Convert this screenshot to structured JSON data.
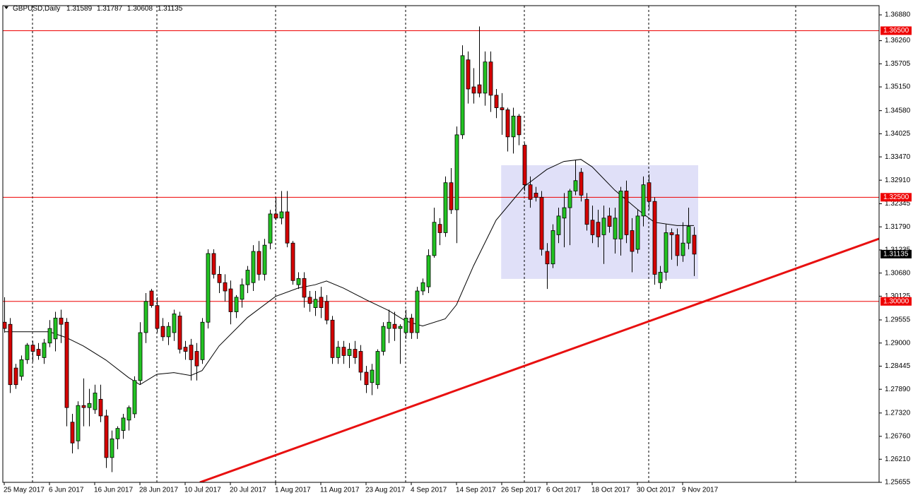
{
  "chart_data": {
    "type": "candlestick",
    "title": "GBPUSD,Daily",
    "up_color": "#22c322",
    "down_color": "#d50000",
    "candles": [
      [
        1.295,
        1.301,
        1.2925,
        1.2935
      ],
      [
        1.2945,
        1.296,
        1.278,
        1.28
      ],
      [
        1.284,
        1.285,
        1.279,
        1.28
      ],
      [
        1.282,
        1.287,
        1.281,
        1.286
      ],
      [
        1.286,
        1.29,
        1.285,
        1.2895
      ],
      [
        1.2895,
        1.2905,
        1.2855,
        1.288
      ],
      [
        1.2885,
        1.29,
        1.286,
        1.287
      ],
      [
        1.2865,
        1.291,
        1.285,
        1.29
      ],
      [
        1.29,
        1.2955,
        1.289,
        1.2935
      ],
      [
        1.291,
        1.2975,
        1.288,
        1.296
      ],
      [
        1.296,
        1.298,
        1.29,
        1.2945
      ],
      [
        1.295,
        1.296,
        1.27,
        1.2745
      ],
      [
        1.271,
        1.273,
        1.2635,
        1.266
      ],
      [
        1.2665,
        1.276,
        1.2645,
        1.275
      ],
      [
        1.275,
        1.2815,
        1.27,
        1.2745
      ],
      [
        1.2745,
        1.279,
        1.27,
        1.2755
      ],
      [
        1.274,
        1.28,
        1.273,
        1.278
      ],
      [
        1.2765,
        1.28,
        1.271,
        1.2725
      ],
      [
        1.2725,
        1.274,
        1.26,
        1.2625
      ],
      [
        1.2625,
        1.269,
        1.259,
        1.267
      ],
      [
        1.267,
        1.27,
        1.2645,
        1.2695
      ],
      [
        1.269,
        1.273,
        1.267,
        1.272
      ],
      [
        1.2715,
        1.275,
        1.269,
        1.2745
      ],
      [
        1.273,
        1.282,
        1.272,
        1.281
      ],
      [
        1.281,
        1.295,
        1.28,
        1.2925
      ],
      [
        1.2925,
        1.302,
        1.29,
        1.3
      ],
      [
        1.3025,
        1.303,
        1.2985,
        1.299
      ],
      [
        1.299,
        1.301,
        1.2925,
        1.2935
      ],
      [
        1.294,
        1.296,
        1.2905,
        1.2915
      ],
      [
        1.2915,
        1.295,
        1.2895,
        1.294
      ],
      [
        1.2925,
        1.298,
        1.2905,
        1.297
      ],
      [
        1.2965,
        1.2975,
        1.2875,
        1.2885
      ],
      [
        1.289,
        1.2905,
        1.286,
        1.288
      ],
      [
        1.2895,
        1.291,
        1.281,
        1.286
      ],
      [
        1.288,
        1.29,
        1.281,
        1.2845
      ],
      [
        1.286,
        1.296,
        1.285,
        1.295
      ],
      [
        1.295,
        1.3125,
        1.2935,
        1.3115
      ],
      [
        1.3115,
        1.3125,
        1.3055,
        1.3065
      ],
      [
        1.3065,
        1.3085,
        1.302,
        1.3045
      ],
      [
        1.3045,
        1.3065,
        1.3,
        1.3025
      ],
      [
        1.303,
        1.305,
        1.2945,
        1.2975
      ],
      [
        1.2975,
        1.3015,
        1.296,
        1.301
      ],
      [
        1.3005,
        1.3055,
        1.2985,
        1.304
      ],
      [
        1.304,
        1.3085,
        1.302,
        1.3075
      ],
      [
        1.3045,
        1.3135,
        1.3025,
        1.312
      ],
      [
        1.312,
        1.3145,
        1.305,
        1.3065
      ],
      [
        1.3065,
        1.315,
        1.305,
        1.3135
      ],
      [
        1.314,
        1.322,
        1.3125,
        1.321
      ],
      [
        1.321,
        1.325,
        1.3195,
        1.32
      ],
      [
        1.32,
        1.3265,
        1.3185,
        1.3215
      ],
      [
        1.3215,
        1.3265,
        1.313,
        1.314
      ],
      [
        1.314,
        1.3145,
        1.304,
        1.305
      ],
      [
        1.304,
        1.307,
        1.303,
        1.3055
      ],
      [
        1.3055,
        1.307,
        1.2985,
        1.301
      ],
      [
        1.301,
        1.3025,
        1.2975,
        1.2995
      ],
      [
        1.2985,
        1.3025,
        1.2965,
        1.3005
      ],
      [
        1.301,
        1.3035,
        1.296,
        1.2985
      ],
      [
        1.3,
        1.3015,
        1.2945,
        1.2955
      ],
      [
        1.2955,
        1.2965,
        1.285,
        1.2865
      ],
      [
        1.2865,
        1.2905,
        1.285,
        1.289
      ],
      [
        1.289,
        1.2905,
        1.285,
        1.287
      ],
      [
        1.287,
        1.29,
        1.284,
        1.2885
      ],
      [
        1.2885,
        1.2905,
        1.285,
        1.2865
      ],
      [
        1.288,
        1.2895,
        1.281,
        1.283
      ],
      [
        1.283,
        1.2845,
        1.278,
        1.28
      ],
      [
        1.2805,
        1.285,
        1.2775,
        1.2835
      ],
      [
        1.28,
        1.2885,
        1.279,
        1.288
      ],
      [
        1.288,
        1.295,
        1.287,
        1.294
      ],
      [
        1.2935,
        1.298,
        1.29,
        1.295
      ],
      [
        1.2945,
        1.2975,
        1.2905,
        1.2935
      ],
      [
        1.2935,
        1.2945,
        1.285,
        1.294
      ],
      [
        1.2925,
        1.298,
        1.291,
        1.296
      ],
      [
        1.296,
        1.297,
        1.291,
        1.2925
      ],
      [
        1.2925,
        1.3035,
        1.291,
        1.3025
      ],
      [
        1.3025,
        1.3055,
        1.3015,
        1.3045
      ],
      [
        1.3035,
        1.3125,
        1.302,
        1.311
      ],
      [
        1.311,
        1.3225,
        1.3105,
        1.319
      ],
      [
        1.3185,
        1.32,
        1.3135,
        1.3165
      ],
      [
        1.3165,
        1.33,
        1.3155,
        1.3285
      ],
      [
        1.3285,
        1.332,
        1.321,
        1.322
      ],
      [
        1.322,
        1.342,
        1.314,
        1.34
      ],
      [
        1.34,
        1.3615,
        1.339,
        1.359
      ],
      [
        1.358,
        1.36,
        1.3475,
        1.351
      ],
      [
        1.3515,
        1.356,
        1.3475,
        1.35
      ],
      [
        1.352,
        1.366,
        1.349,
        1.35
      ],
      [
        1.35,
        1.36,
        1.347,
        1.3575
      ],
      [
        1.3575,
        1.36,
        1.3455,
        1.3495
      ],
      [
        1.3495,
        1.351,
        1.344,
        1.3465
      ],
      [
        1.3465,
        1.35,
        1.34,
        1.346
      ],
      [
        1.346,
        1.3465,
        1.336,
        1.3395
      ],
      [
        1.3395,
        1.3465,
        1.3355,
        1.3445
      ],
      [
        1.3445,
        1.345,
        1.3375,
        1.34
      ],
      [
        1.3375,
        1.338,
        1.3265,
        1.328
      ],
      [
        1.328,
        1.33,
        1.3225,
        1.3245
      ],
      [
        1.326,
        1.3275,
        1.324,
        1.325
      ],
      [
        1.325,
        1.3265,
        1.311,
        1.3125
      ],
      [
        1.312,
        1.314,
        1.303,
        1.309
      ],
      [
        1.309,
        1.3185,
        1.308,
        1.317
      ],
      [
        1.316,
        1.3225,
        1.314,
        1.3205
      ],
      [
        1.32,
        1.326,
        1.313,
        1.3225
      ],
      [
        1.3225,
        1.327,
        1.3135,
        1.3265
      ],
      [
        1.3265,
        1.334,
        1.3255,
        1.329
      ],
      [
        1.331,
        1.332,
        1.324,
        1.3255
      ],
      [
        1.3245,
        1.326,
        1.317,
        1.3185
      ],
      [
        1.3195,
        1.323,
        1.314,
        1.316
      ],
      [
        1.319,
        1.322,
        1.313,
        1.3155
      ],
      [
        1.316,
        1.323,
        1.309,
        1.32
      ],
      [
        1.3205,
        1.3225,
        1.3165,
        1.318
      ],
      [
        1.315,
        1.3225,
        1.3115,
        1.32
      ],
      [
        1.315,
        1.3275,
        1.311,
        1.3265
      ],
      [
        1.3265,
        1.329,
        1.314,
        1.316
      ],
      [
        1.317,
        1.32,
        1.307,
        1.312
      ],
      [
        1.3125,
        1.322,
        1.3115,
        1.3205
      ],
      [
        1.3205,
        1.33,
        1.318,
        1.328
      ],
      [
        1.3285,
        1.3305,
        1.322,
        1.324
      ],
      [
        1.324,
        1.325,
        1.304,
        1.3065
      ],
      [
        1.3045,
        1.3085,
        1.303,
        1.307
      ],
      [
        1.307,
        1.3185,
        1.305,
        1.3165
      ],
      [
        1.3165,
        1.3175,
        1.31,
        1.316
      ],
      [
        1.316,
        1.3175,
        1.3085,
        1.311
      ],
      [
        1.311,
        1.319,
        1.3095,
        1.314
      ],
      [
        1.314,
        1.3225,
        1.3125,
        1.318
      ],
      [
        1.31589,
        1.31787,
        1.30608,
        1.31135
      ]
    ],
    "ma": {
      "color": "#000000",
      "x": [
        0,
        5,
        8,
        11,
        14,
        18,
        22,
        24,
        27,
        30,
        33,
        35,
        38,
        43,
        48,
        52,
        55,
        57,
        60,
        64,
        68,
        71,
        74,
        78,
        80,
        83,
        87,
        92,
        96,
        99,
        102,
        104,
        108,
        112,
        115,
        119,
        122
      ],
      "values": [
        1.2927,
        1.2927,
        1.2927,
        1.2913,
        1.2893,
        1.2859,
        1.2817,
        1.28,
        1.2825,
        1.2829,
        1.2822,
        1.2834,
        1.2893,
        1.2961,
        1.3012,
        1.3032,
        1.304,
        1.3049,
        1.3032,
        1.3004,
        1.2978,
        1.2953,
        1.2941,
        1.2958,
        1.2992,
        1.3085,
        1.3195,
        1.3276,
        1.3317,
        1.3336,
        1.3341,
        1.3323,
        1.3267,
        1.3221,
        1.319,
        1.3182,
        1.3182
      ]
    },
    "trendline": {
      "color": "#e81010",
      "x": [
        34.6,
        154.75
      ],
      "values": [
        1.25655,
        1.31506
      ]
    },
    "range_box": {
      "color": "#e0e0f8",
      "x": [
        87.9,
        122.75
      ],
      "values": [
        1.3054,
        1.3327
      ]
    },
    "levels": [
      {
        "value": 1.365,
        "label": "1.36500"
      },
      {
        "value": 1.325,
        "label": "1.32500"
      },
      {
        "value": 1.3,
        "label": "1.30000"
      }
    ],
    "level_color": "#ee0000",
    "separators": [
      5,
      27,
      48,
      71,
      92,
      114,
      140
    ],
    "xlim": [
      -0.25,
      154.75
    ],
    "xticks": [
      {
        "value": 0,
        "label": "25 May 2017"
      },
      {
        "value": 8,
        "label": "6 Jun 2017"
      },
      {
        "value": 16,
        "label": "16 Jun 2017"
      },
      {
        "value": 24,
        "label": "28 Jun 2017"
      },
      {
        "value": 32,
        "label": "10 Jul 2017"
      },
      {
        "value": 40,
        "label": "20 Jul 2017"
      },
      {
        "value": 48,
        "label": "1 Aug 2017"
      },
      {
        "value": 56,
        "label": "11 Aug 2017"
      },
      {
        "value": 64,
        "label": "23 Aug 2017"
      },
      {
        "value": 72,
        "label": "4 Sep 2017"
      },
      {
        "value": 80,
        "label": "14 Sep 2017"
      },
      {
        "value": 88,
        "label": "26 Sep 2017"
      },
      {
        "value": 96,
        "label": "6 Oct 2017"
      },
      {
        "value": 104,
        "label": "18 Oct 2017"
      },
      {
        "value": 112,
        "label": "30 Oct 2017"
      },
      {
        "value": 120,
        "label": "9 Nov 2017"
      }
    ],
    "ylim": [
      1.25655,
      1.37101
    ],
    "yticks": [
      {
        "value": 1.3688,
        "label": "1.36880"
      },
      {
        "value": 1.3626,
        "label": "1.36260"
      },
      {
        "value": 1.35705,
        "label": "1.35705"
      },
      {
        "value": 1.3515,
        "label": "1.35150"
      },
      {
        "value": 1.3458,
        "label": "1.34580"
      },
      {
        "value": 1.34025,
        "label": "1.34025"
      },
      {
        "value": 1.3347,
        "label": "1.33470"
      },
      {
        "value": 1.3291,
        "label": "1.32910"
      },
      {
        "value": 1.32345,
        "label": "1.32345"
      },
      {
        "value": 1.3179,
        "label": "1.31790"
      },
      {
        "value": 1.31235,
        "label": "1.31235"
      },
      {
        "value": 1.3068,
        "label": "1.30680"
      },
      {
        "value": 1.30125,
        "label": "1.30125"
      },
      {
        "value": 1.29555,
        "label": "1.29555"
      },
      {
        "value": 1.29,
        "label": "1.29000"
      },
      {
        "value": 1.28445,
        "label": "1.28445"
      },
      {
        "value": 1.2789,
        "label": "1.27890"
      },
      {
        "value": 1.2732,
        "label": "1.27320"
      },
      {
        "value": 1.2676,
        "label": "1.26760"
      },
      {
        "value": 1.2621,
        "label": "1.26210"
      },
      {
        "value": 1.25655,
        "label": "1.25655"
      }
    ]
  }
}
